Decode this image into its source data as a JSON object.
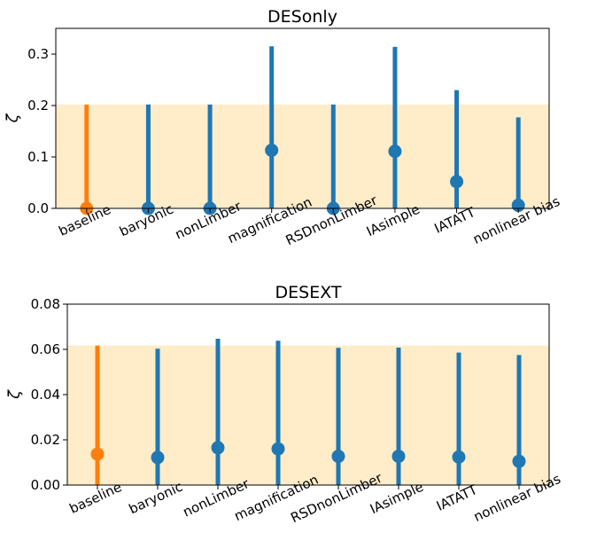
{
  "chart_data": [
    {
      "type": "scatter",
      "title": "DESonly",
      "ylabel": "ζ",
      "xlabel": "",
      "categories": [
        "baseline",
        "baryonic",
        "nonLimber",
        "magnification",
        "RSDnonLimber",
        "IAsimple",
        "IATATT",
        "nonlinear bias"
      ],
      "values": [
        0.0,
        0.0,
        0.0,
        0.113,
        0.0,
        0.111,
        0.052,
        0.006
      ],
      "upper": [
        0.202,
        0.202,
        0.202,
        0.315,
        0.202,
        0.314,
        0.23,
        0.177
      ],
      "band": [
        0.0,
        0.202
      ],
      "ylim": [
        0.0,
        0.35
      ],
      "yticks": [
        "0.0",
        "0.1",
        "0.2",
        "0.3"
      ],
      "ytick_values": [
        0.0,
        0.1,
        0.2,
        0.3
      ],
      "grid": false,
      "colors": {
        "highlight": "#ff7f0e",
        "series": "#1f77b4",
        "band": "#ffecc8"
      }
    },
    {
      "type": "scatter",
      "title": "DESEXT",
      "ylabel": "ζ",
      "xlabel": "",
      "categories": [
        "baseline",
        "baryonic",
        "nonLimber",
        "magnification",
        "RSDnonLimber",
        "IAsimple",
        "IATATT",
        "nonlinear bias"
      ],
      "values": [
        0.0137,
        0.0122,
        0.0165,
        0.016,
        0.0127,
        0.0127,
        0.0124,
        0.0105
      ],
      "upper": [
        0.0617,
        0.0603,
        0.0647,
        0.0638,
        0.0607,
        0.0608,
        0.0586,
        0.0575
      ],
      "band": [
        0.0,
        0.0617
      ],
      "ylim": [
        0.0,
        0.08
      ],
      "yticks": [
        "0.00",
        "0.02",
        "0.04",
        "0.06",
        "0.08"
      ],
      "ytick_values": [
        0.0,
        0.02,
        0.04,
        0.06,
        0.08
      ],
      "grid": false,
      "colors": {
        "highlight": "#ff7f0e",
        "series": "#1f77b4",
        "band": "#ffecc8"
      }
    }
  ]
}
